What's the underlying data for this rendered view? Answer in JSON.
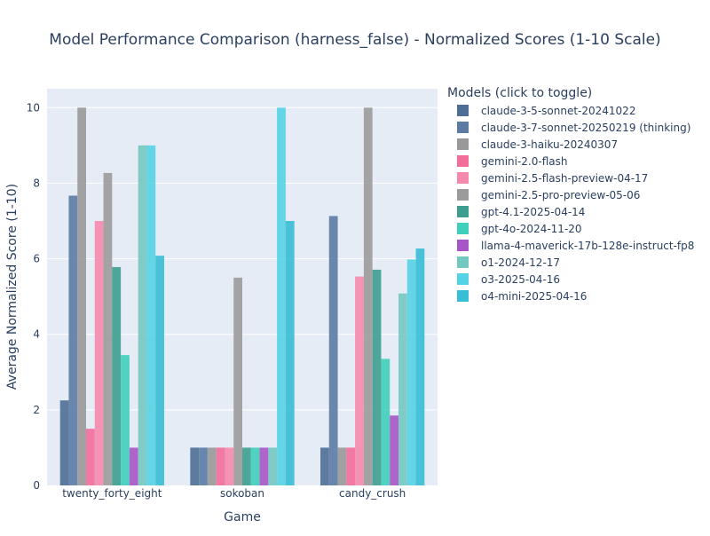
{
  "chart_data": {
    "type": "bar",
    "title": "Model Performance Comparison (harness_false) - Normalized Scores (1-10 Scale)",
    "xlabel": "Game",
    "ylabel": "Average Normalized Score (1-10)",
    "categories": [
      "twenty_forty_eight",
      "sokoban",
      "candy_crush"
    ],
    "ylim": [
      0,
      10.5
    ],
    "yticks": [
      0,
      2,
      4,
      6,
      8,
      10
    ],
    "grid": true,
    "legend_title": "Models (click to toggle)",
    "legend_position": "right",
    "series": [
      {
        "name": "claude-3-5-sonnet-20241022",
        "color": "#4e6e96",
        "values": [
          2.25,
          1.0,
          1.0
        ]
      },
      {
        "name": "claude-3-7-sonnet-20250219 (thinking)",
        "color": "#5b7ba5",
        "values": [
          7.67,
          1.0,
          7.13
        ]
      },
      {
        "name": "claude-3-haiku-20240307",
        "color": "#999999",
        "values": [
          10.0,
          1.0,
          1.0
        ]
      },
      {
        "name": "gemini-2.0-flash",
        "color": "#f36d9a",
        "values": [
          1.5,
          1.0,
          1.0
        ]
      },
      {
        "name": "gemini-2.5-flash-preview-04-17",
        "color": "#f589ad",
        "values": [
          7.0,
          1.0,
          5.53
        ]
      },
      {
        "name": "gemini-2.5-pro-preview-05-06",
        "color": "#9b9b9b",
        "values": [
          8.27,
          5.5,
          10.0
        ]
      },
      {
        "name": "gpt-4.1-2025-04-14",
        "color": "#3d9e90",
        "values": [
          5.78,
          1.0,
          5.71
        ]
      },
      {
        "name": "gpt-4o-2024-11-20",
        "color": "#3fcfbb",
        "values": [
          3.45,
          1.0,
          3.35
        ]
      },
      {
        "name": "llama-4-maverick-17b-128e-instruct-fp8",
        "color": "#a855c7",
        "values": [
          1.0,
          1.0,
          1.85
        ]
      },
      {
        "name": "o1-2024-12-17",
        "color": "#73c9c1",
        "values": [
          9.0,
          1.0,
          5.08
        ]
      },
      {
        "name": "o3-2025-04-16",
        "color": "#55d3e6",
        "values": [
          9.0,
          10.0,
          5.98
        ]
      },
      {
        "name": "o4-mini-2025-04-16",
        "color": "#37bdd6",
        "values": [
          6.08,
          7.0,
          6.27
        ]
      }
    ]
  }
}
